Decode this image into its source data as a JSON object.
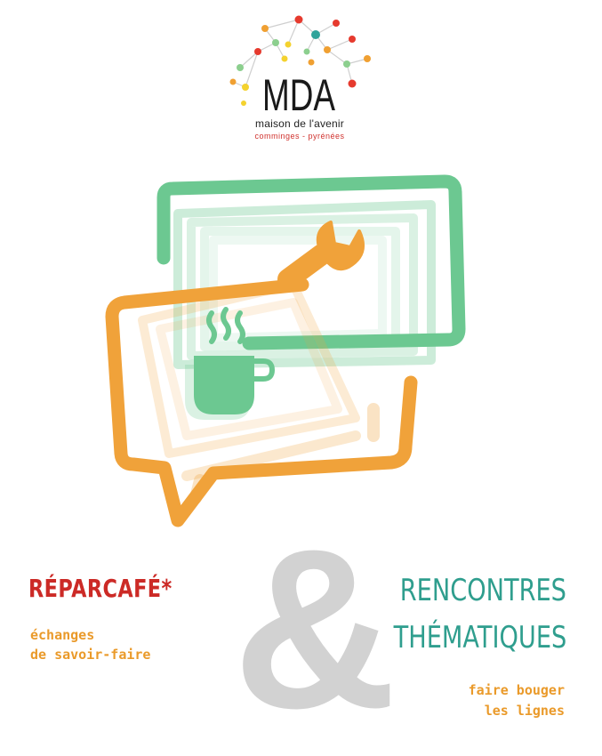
{
  "logo": {
    "mark": "MDA",
    "line1": "maison de l'avenir",
    "line2": "comminges - pyrénées",
    "colors": {
      "network": [
        "#e63a2e",
        "#f0a032",
        "#8ccf8e",
        "#f4d22e",
        "#2fa39a"
      ],
      "text": "#1a1a1a"
    }
  },
  "illustration": {
    "icons": [
      "speech-bubble-orange",
      "speech-bubble-green",
      "wrench-icon",
      "coffee-cup-icon"
    ],
    "colors": {
      "orange": "#f0a23a",
      "green": "#6cc891"
    }
  },
  "left_block": {
    "title": "RÉPARCAFÉ*",
    "sub1": "échanges",
    "sub2": "de savoir-faire"
  },
  "ampersand": "&",
  "right_block": {
    "title1": "RENCONTRES",
    "title2": "THÉMATIQUES",
    "sub1": "faire bouger",
    "sub2": "les lignes"
  }
}
